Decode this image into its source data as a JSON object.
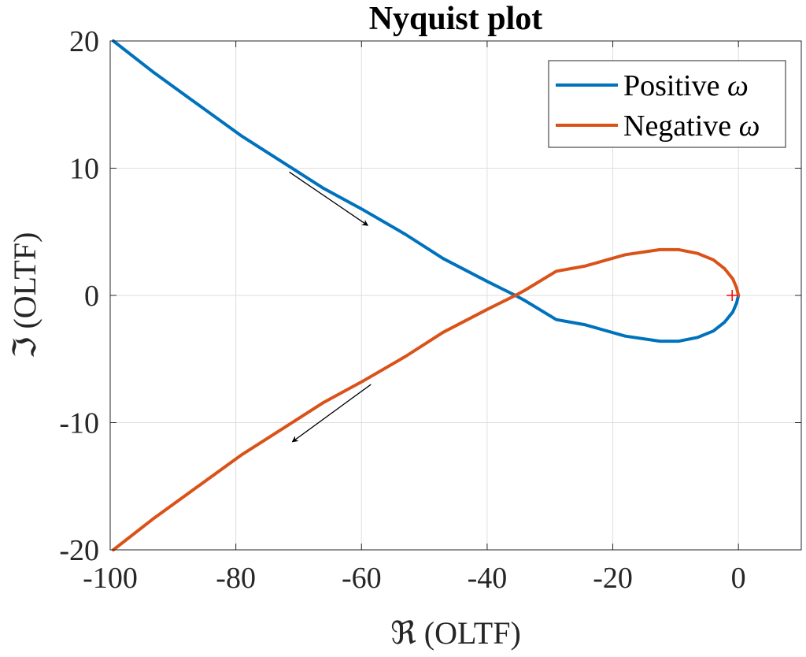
{
  "chart_data": {
    "type": "line",
    "title": "Nyquist plot",
    "xlabel": "ℜ (OLTF)",
    "ylabel": "ℑ (OLTF)",
    "xlim": [
      -100,
      10
    ],
    "ylim": [
      -20,
      20
    ],
    "xticks": [
      -100,
      -80,
      -60,
      -40,
      -20,
      0
    ],
    "yticks": [
      -20,
      -10,
      0,
      10,
      20
    ],
    "xtick_labels": [
      "-100",
      "-80",
      "-60",
      "-40",
      "-20",
      "0"
    ],
    "ytick_labels": [
      "-20",
      "-10",
      "0",
      "10",
      "20"
    ],
    "grid": true,
    "legend_position": "top-right",
    "series": [
      {
        "name": "Positive ω",
        "legend_name": "Positive",
        "color": "#0072BD",
        "x": [
          -99.5,
          -93,
          -86,
          -79,
          -72,
          -66,
          -60,
          -53,
          -47,
          -40,
          -35.5,
          -34,
          -29,
          -24.5,
          -18,
          -12.5,
          -9.5,
          -6.5,
          -4,
          -2.2,
          -0.9,
          -0.3,
          0
        ],
        "y": [
          20,
          17.5,
          15,
          12.5,
          10.3,
          8.4,
          6.8,
          4.8,
          2.9,
          1.1,
          0,
          -0.4,
          -1.9,
          -2.3,
          -3.2,
          -3.6,
          -3.6,
          -3.3,
          -2.8,
          -2.1,
          -1.3,
          -0.6,
          0
        ]
      },
      {
        "name": "Negative ω",
        "legend_name": "Negative",
        "color": "#D95319",
        "x": [
          -99.5,
          -93,
          -86,
          -79,
          -72,
          -66,
          -60,
          -53,
          -47,
          -40,
          -35.5,
          -34,
          -29,
          -24.5,
          -18,
          -12.5,
          -9.5,
          -6.5,
          -4,
          -2.2,
          -0.9,
          -0.3,
          0
        ],
        "y": [
          -20,
          -17.5,
          -15,
          -12.5,
          -10.3,
          -8.4,
          -6.8,
          -4.8,
          -2.9,
          -1.1,
          0,
          0.4,
          1.9,
          2.3,
          3.2,
          3.6,
          3.6,
          3.3,
          2.8,
          2.1,
          1.3,
          0.6,
          0
        ]
      }
    ],
    "critical_point": {
      "x": -1,
      "y": 0,
      "marker": "+",
      "color": "#ff0000"
    },
    "arrows": [
      {
        "from": [
          -71.5,
          9.7
        ],
        "to": [
          -59,
          5.5
        ]
      },
      {
        "from": [
          -58.5,
          -7.0
        ],
        "to": [
          -71,
          -11.5
        ]
      }
    ]
  }
}
